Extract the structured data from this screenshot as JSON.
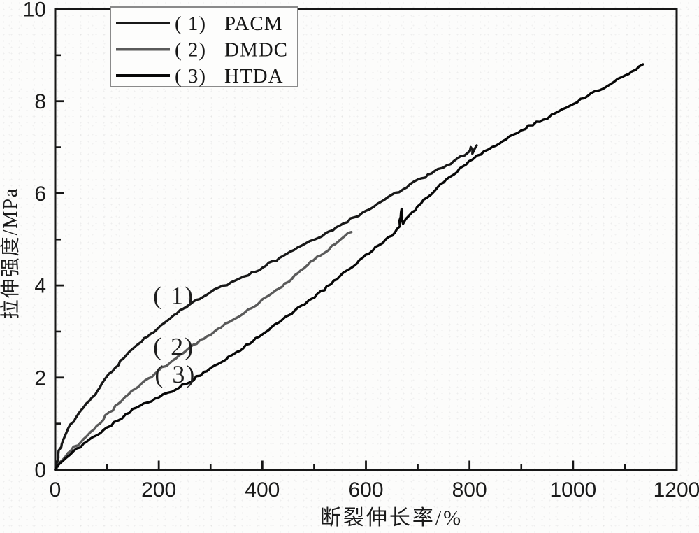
{
  "figure": {
    "kind": "scanned stress-strain line chart",
    "background_color": "#fcfcfb",
    "axis_color": "#161616"
  },
  "chart_data": {
    "type": "line",
    "title": "",
    "xlabel": "断裂伸长率/%",
    "ylabel": "拉伸强度/MPa",
    "xlim": [
      0,
      1200
    ],
    "ylim": [
      0,
      10
    ],
    "x_major_ticks": [
      0,
      200,
      400,
      600,
      800,
      1000,
      1200
    ],
    "x_minor_ticks": [
      100,
      300,
      500,
      700,
      900,
      1100
    ],
    "y_major_ticks": [
      0,
      2,
      4,
      6,
      8,
      10
    ],
    "y_minor_ticks": [
      1,
      3,
      5,
      7,
      9
    ],
    "grid": false,
    "legend": {
      "position": "top-left",
      "entries": [
        {
          "prefix": "( 1)",
          "name": "PACM",
          "color": "#181818"
        },
        {
          "prefix": "( 2)",
          "name": "DMDC",
          "color": "#5a5a5a"
        },
        {
          "prefix": "( 3)",
          "name": "HTDA",
          "color": "#070707"
        }
      ]
    },
    "annotations": [
      {
        "text": "( 1)",
        "x": 229,
        "y": 3.79
      },
      {
        "text": "( 2)",
        "x": 229,
        "y": 2.68
      },
      {
        "text": "( 3)",
        "x": 232,
        "y": 2.08
      }
    ],
    "series": [
      {
        "name": "PACM",
        "legend_label": "( 1) PACM",
        "color": "#181818",
        "break_point": [
          815,
          7.0
        ],
        "points": [
          [
            0,
            0
          ],
          [
            8,
            0.42
          ],
          [
            18,
            0.72
          ],
          [
            30,
            0.98
          ],
          [
            45,
            1.22
          ],
          [
            60,
            1.42
          ],
          [
            77,
            1.62
          ],
          [
            95,
            1.95
          ],
          [
            115,
            2.2
          ],
          [
            138,
            2.5
          ],
          [
            160,
            2.72
          ],
          [
            185,
            2.95
          ],
          [
            210,
            3.17
          ],
          [
            235,
            3.4
          ],
          [
            266,
            3.62
          ],
          [
            300,
            3.85
          ],
          [
            340,
            4.07
          ],
          [
            380,
            4.27
          ],
          [
            420,
            4.52
          ],
          [
            461,
            4.76
          ],
          [
            500,
            5.0
          ],
          [
            550,
            5.3
          ],
          [
            600,
            5.62
          ],
          [
            650,
            5.95
          ],
          [
            700,
            6.28
          ],
          [
            740,
            6.52
          ],
          [
            770,
            6.7
          ],
          [
            790,
            6.83
          ],
          [
            800,
            6.9
          ],
          [
            803,
            7.0
          ],
          [
            806,
            6.86
          ],
          [
            810,
            6.98
          ],
          [
            814,
            7.04
          ]
        ]
      },
      {
        "name": "DMDC",
        "legend_label": "( 2) DMDC",
        "color": "#5a5a5a",
        "break_point": [
          572,
          5.16
        ],
        "points": [
          [
            0,
            0
          ],
          [
            12,
            0.2
          ],
          [
            30,
            0.42
          ],
          [
            55,
            0.68
          ],
          [
            80,
            0.95
          ],
          [
            110,
            1.3
          ],
          [
            148,
            1.7
          ],
          [
            185,
            2.03
          ],
          [
            220,
            2.33
          ],
          [
            260,
            2.65
          ],
          [
            300,
            2.95
          ],
          [
            350,
            3.3
          ],
          [
            400,
            3.68
          ],
          [
            450,
            4.1
          ],
          [
            500,
            4.55
          ],
          [
            540,
            4.9
          ],
          [
            565,
            5.12
          ],
          [
            572,
            5.16
          ]
        ]
      },
      {
        "name": "HTDA",
        "legend_label": "( 3) HTDA",
        "color": "#070707",
        "break_point": [
          1135,
          8.8
        ],
        "points": [
          [
            0,
            0
          ],
          [
            15,
            0.2
          ],
          [
            30,
            0.35
          ],
          [
            60,
            0.6
          ],
          [
            100,
            0.92
          ],
          [
            150,
            1.3
          ],
          [
            200,
            1.58
          ],
          [
            225,
            1.7
          ],
          [
            260,
            1.92
          ],
          [
            300,
            2.2
          ],
          [
            350,
            2.55
          ],
          [
            400,
            2.95
          ],
          [
            450,
            3.35
          ],
          [
            500,
            3.75
          ],
          [
            550,
            4.2
          ],
          [
            600,
            4.65
          ],
          [
            650,
            5.1
          ],
          [
            665,
            5.3
          ],
          [
            668,
            5.66
          ],
          [
            671,
            5.35
          ],
          [
            700,
            5.72
          ],
          [
            750,
            6.25
          ],
          [
            800,
            6.7
          ],
          [
            850,
            7.05
          ],
          [
            900,
            7.38
          ],
          [
            950,
            7.65
          ],
          [
            1000,
            7.95
          ],
          [
            1050,
            8.25
          ],
          [
            1100,
            8.55
          ],
          [
            1135,
            8.8
          ]
        ]
      }
    ]
  }
}
